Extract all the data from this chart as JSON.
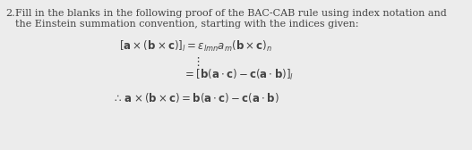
{
  "bg_color": "#ececec",
  "text_color": "#444444",
  "question_number": "2.",
  "intro_line1": "Fill in the blanks in the following proof of the BAC-CAB rule using index notation and",
  "intro_line2": "the Einstein summation convention, starting with the indices given:",
  "eq1_left": "[",
  "eq1_mid": "a",
  "eq1_text": " × (",
  "fontsize_text": 8.0,
  "fontsize_math": 8.5
}
